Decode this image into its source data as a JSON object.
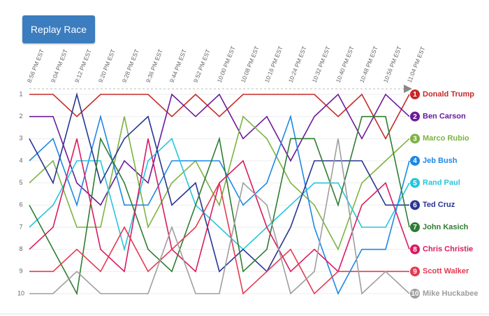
{
  "button": "Replay Race",
  "chart_data": {
    "type": "bump",
    "categories": [
      "8:56 PM EST",
      "9:04 PM EST",
      "9:12 PM EST",
      "9:20 PM EST",
      "9:28 PM EST",
      "9:36 PM EST",
      "9:44 PM EST",
      "9:52 PM EST",
      "10:00 PM EST",
      "10:08 PM EST",
      "10:16 PM EST",
      "10:24 PM EST",
      "10:32 PM EST",
      "10:40 PM EST",
      "10:48 PM EST",
      "10:56 PM EST",
      "11:04 PM EST"
    ],
    "ylim": [
      1,
      10
    ],
    "yticks": [
      1,
      2,
      3,
      4,
      5,
      6,
      7,
      8,
      9,
      10
    ],
    "y_inverted": true,
    "grid": true,
    "series": [
      {
        "name": "Donald Trump",
        "color": "#c62828",
        "values": [
          1,
          1,
          2,
          1,
          1,
          1,
          2,
          1,
          2,
          1,
          1,
          1,
          1,
          2,
          1,
          3,
          1
        ]
      },
      {
        "name": "Ben Carson",
        "color": "#6a1b9a",
        "values": [
          2,
          2,
          5,
          6,
          4,
          5,
          1,
          2,
          1,
          3,
          2,
          4,
          2,
          1,
          3,
          1,
          2
        ]
      },
      {
        "name": "Marco Rubio",
        "color": "#7cb342",
        "values": [
          5,
          4,
          7,
          7,
          2,
          7,
          5,
          4,
          6,
          2,
          3,
          5,
          6,
          8,
          5,
          4,
          3
        ]
      },
      {
        "name": "Jeb Bush",
        "color": "#1e88e5",
        "values": [
          4,
          3,
          6,
          2,
          6,
          6,
          4,
          4,
          4,
          6,
          5,
          2,
          7,
          10,
          8,
          8,
          4
        ]
      },
      {
        "name": "Rand Paul",
        "color": "#26c6da",
        "values": [
          7,
          6,
          4,
          4,
          8,
          4,
          3,
          6,
          7,
          8,
          7,
          6,
          5,
          5,
          7,
          7,
          5
        ]
      },
      {
        "name": "Ted Cruz",
        "color": "#283593",
        "values": [
          3,
          5,
          1,
          5,
          3,
          2,
          6,
          5,
          9,
          8,
          9,
          7,
          4,
          4,
          4,
          6,
          6
        ]
      },
      {
        "name": "John Kasich",
        "color": "#2e7d32",
        "values": [
          6,
          8,
          10,
          3,
          5,
          8,
          9,
          6,
          3,
          9,
          8,
          3,
          3,
          6,
          2,
          2,
          7
        ]
      },
      {
        "name": "Chris Christie",
        "color": "#d81b60",
        "values": [
          8,
          7,
          3,
          8,
          9,
          3,
          8,
          9,
          5,
          4,
          7,
          9,
          8,
          9,
          6,
          5,
          8
        ]
      },
      {
        "name": "Scott Walker",
        "color": "#e53950",
        "values": [
          9,
          9,
          8,
          9,
          7,
          9,
          8,
          7,
          5,
          10,
          9,
          8,
          10,
          9,
          9,
          9,
          9
        ]
      },
      {
        "name": "Mike Huckabee",
        "color": "#9e9e9e",
        "values": [
          10,
          10,
          9,
          10,
          10,
          10,
          7,
          10,
          10,
          5,
          6,
          10,
          9,
          3,
          10,
          9,
          10
        ]
      }
    ]
  }
}
